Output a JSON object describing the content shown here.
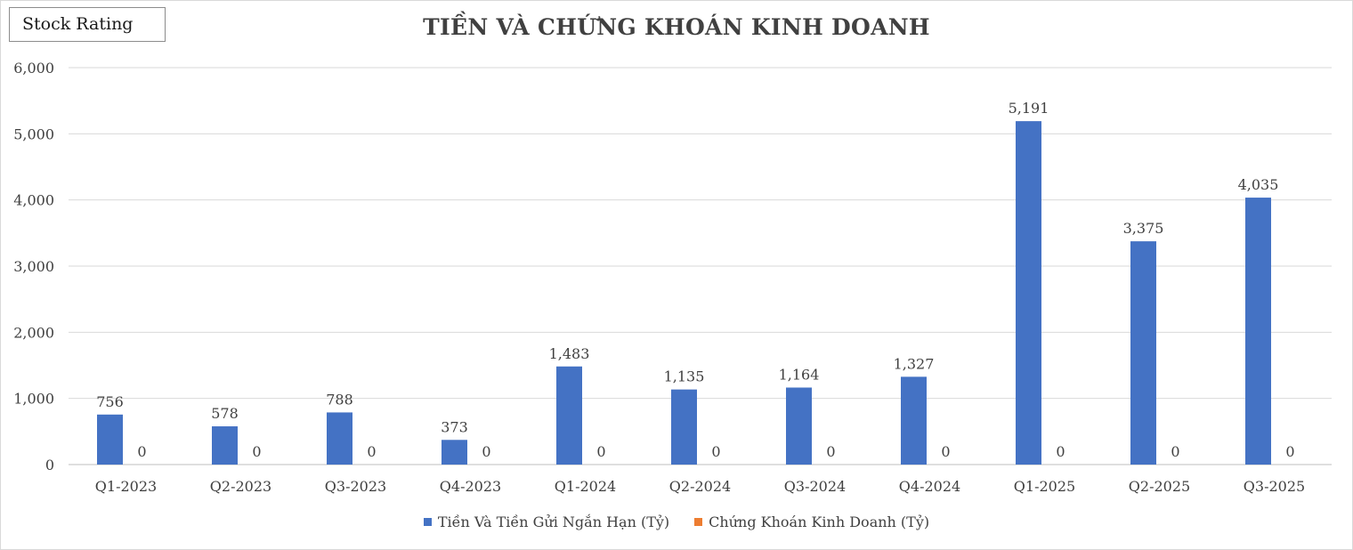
{
  "badge": {
    "label": "Stock Rating"
  },
  "chart_data": {
    "type": "bar",
    "title": "TIỀN VÀ CHỨNG KHOÁN KINH DOANH",
    "xlabel": "",
    "ylabel": "",
    "ylim": [
      0,
      6000
    ],
    "yticks": [
      0,
      1000,
      2000,
      3000,
      4000,
      5000,
      6000
    ],
    "ytick_labels": [
      "0",
      "1,000",
      "2,000",
      "3,000",
      "4,000",
      "5,000",
      "6,000"
    ],
    "grid": true,
    "legend_position": "bottom",
    "categories": [
      "Q1-2023",
      "Q2-2023",
      "Q3-2023",
      "Q4-2023",
      "Q1-2024",
      "Q2-2024",
      "Q3-2024",
      "Q4-2024",
      "Q1-2025",
      "Q2-2025",
      "Q3-2025"
    ],
    "series": [
      {
        "name": "Tiền Và Tiền Gửi Ngắn Hạn (Tỷ)",
        "color": "#4472c4",
        "values": [
          756,
          578,
          788,
          373,
          1483,
          1135,
          1164,
          1327,
          5191,
          3375,
          4035
        ],
        "labels": [
          "756",
          "578",
          "788",
          "373",
          "1,483",
          "1,135",
          "1,164",
          "1,327",
          "5,191",
          "3,375",
          "4,035"
        ]
      },
      {
        "name": "Chứng Khoán Kinh Doanh (Tỷ)",
        "color": "#ed7d31",
        "values": [
          0,
          0,
          0,
          0,
          0,
          0,
          0,
          0,
          0,
          0,
          0
        ],
        "labels": [
          "0",
          "0",
          "0",
          "0",
          "0",
          "0",
          "0",
          "0",
          "0",
          "0",
          "0"
        ]
      }
    ]
  }
}
